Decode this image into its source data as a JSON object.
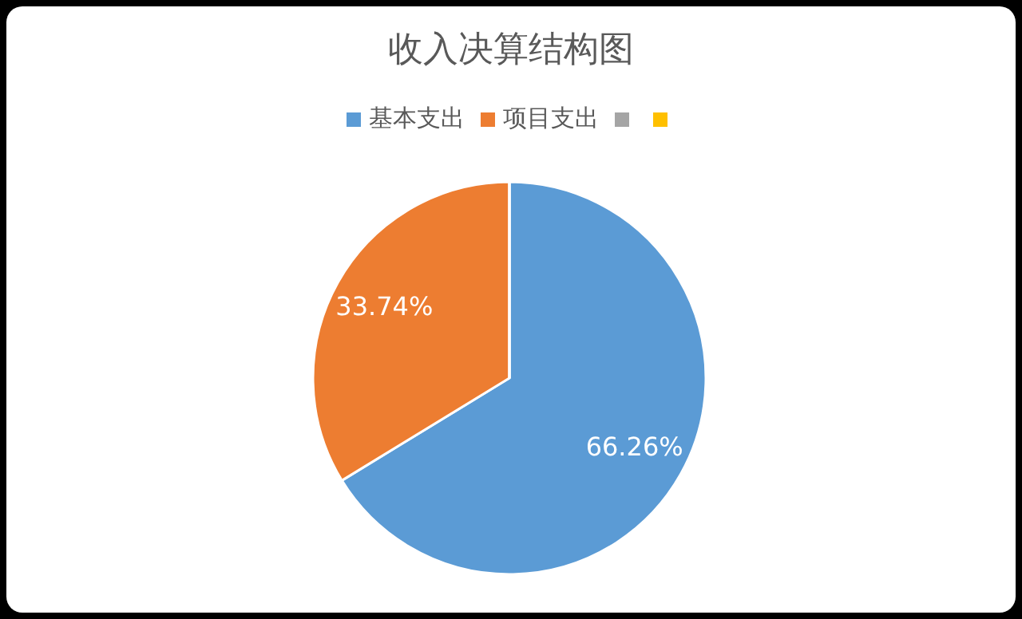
{
  "chart_data": {
    "type": "pie",
    "title": "收入决算结构图",
    "categories": [
      "基本支出",
      "项目支出",
      null,
      null
    ],
    "values": [
      66.26,
      33.74,
      0,
      0
    ],
    "colors": [
      "#5b9bd5",
      "#ed7d31",
      "#a5a5a5",
      "#ffc000"
    ],
    "value_labels": [
      "66.26%",
      "33.74%",
      null,
      null
    ],
    "legend": "top"
  }
}
